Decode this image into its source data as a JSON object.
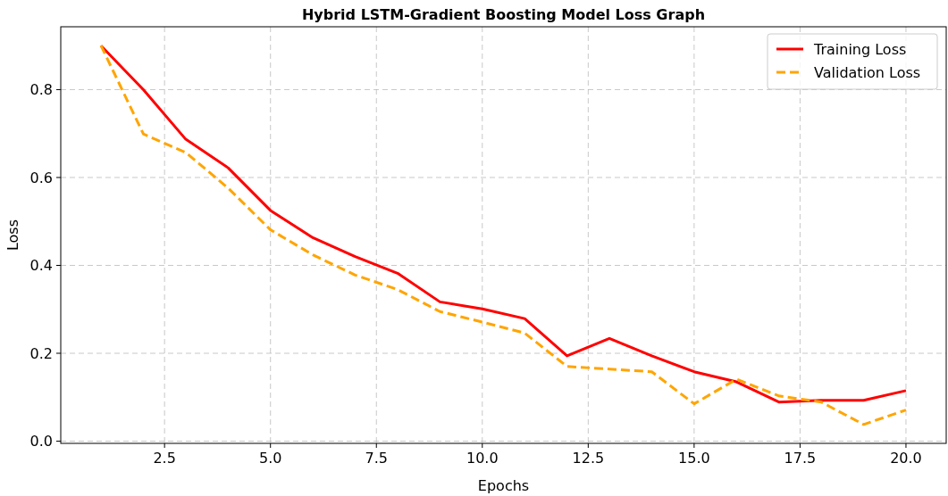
{
  "chart_data": {
    "type": "line",
    "title": "Hybrid LSTM-Gradient Boosting Model Loss Graph",
    "xlabel": "Epochs",
    "ylabel": "Loss",
    "x": [
      1,
      2,
      3,
      4,
      5,
      6,
      7,
      8,
      9,
      10,
      11,
      12,
      13,
      14,
      15,
      16,
      17,
      18,
      19,
      20
    ],
    "series": [
      {
        "name": "Training Loss",
        "color": "#ff0000",
        "line_style": "solid",
        "values": [
          0.9,
          0.8,
          0.687,
          0.622,
          0.525,
          0.463,
          0.42,
          0.382,
          0.317,
          0.301,
          0.279,
          0.194,
          0.234,
          0.194,
          0.158,
          0.135,
          0.089,
          0.093,
          0.093,
          0.115
        ]
      },
      {
        "name": "Validation Loss",
        "color": "#ffa500",
        "line_style": "dashed",
        "values": [
          0.9,
          0.699,
          0.657,
          0.576,
          0.481,
          0.424,
          0.378,
          0.345,
          0.295,
          0.271,
          0.246,
          0.17,
          0.164,
          0.158,
          0.085,
          0.141,
          0.103,
          0.089,
          0.038,
          0.071
        ]
      }
    ],
    "xlim": [
      0.05,
      20.95
    ],
    "xticks": [
      {
        "value": 2.5,
        "label": "2.5"
      },
      {
        "value": 5,
        "label": "5.0"
      },
      {
        "value": 7.5,
        "label": "7.5"
      },
      {
        "value": 10,
        "label": "10.0"
      },
      {
        "value": 12.5,
        "label": "12.5"
      },
      {
        "value": 15,
        "label": "15.0"
      },
      {
        "value": 17.5,
        "label": "17.5"
      },
      {
        "value": 20,
        "label": "20.0"
      }
    ],
    "ylim": [
      -0.005,
      0.943
    ],
    "yticks": [
      {
        "value": 0,
        "label": "0.0"
      },
      {
        "value": 0.2,
        "label": "0.2"
      },
      {
        "value": 0.4,
        "label": "0.4"
      },
      {
        "value": 0.6,
        "label": "0.6"
      },
      {
        "value": 0.8,
        "label": "0.8"
      }
    ],
    "grid": true,
    "legend": "top right"
  }
}
